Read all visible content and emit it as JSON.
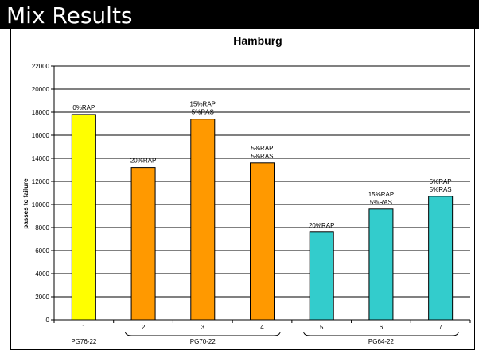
{
  "slide": {
    "title": "Mix Results"
  },
  "chart_data": {
    "type": "bar",
    "title": "Hamburg",
    "xlabel": "",
    "ylabel": "passes to failure",
    "ylim": [
      0,
      22000
    ],
    "yticks": [
      "0",
      "2000",
      "4000",
      "6000",
      "8000",
      "10000",
      "12000",
      "14000",
      "16000",
      "18000",
      "20000",
      "22000"
    ],
    "grid": true,
    "legend": "none",
    "categories": [
      "1",
      "2",
      "3",
      "4",
      "5",
      "6",
      "7"
    ],
    "values": [
      17800,
      13200,
      17400,
      13600,
      7600,
      9600,
      10700
    ],
    "bar_colors": [
      "#FFFF00",
      "#FF9900",
      "#FF9900",
      "#FF9900",
      "#33CCCC",
      "#33CCCC",
      "#33CCCC"
    ],
    "bar_labels": [
      [
        "0%RAP"
      ],
      [
        "20%RAP"
      ],
      [
        "15%RAP",
        "5%RAS"
      ],
      [
        "5%RAP",
        "5%RAS"
      ],
      [
        "20%RAP"
      ],
      [
        "15%RAP",
        "5%RAS"
      ],
      [
        "5%RAP",
        "5%RAS"
      ]
    ],
    "groups": [
      {
        "label": "PG76-22",
        "from": 0,
        "to": 0
      },
      {
        "label": "PG70-22",
        "from": 1,
        "to": 3
      },
      {
        "label": "PG64-22",
        "from": 4,
        "to": 6
      }
    ]
  }
}
